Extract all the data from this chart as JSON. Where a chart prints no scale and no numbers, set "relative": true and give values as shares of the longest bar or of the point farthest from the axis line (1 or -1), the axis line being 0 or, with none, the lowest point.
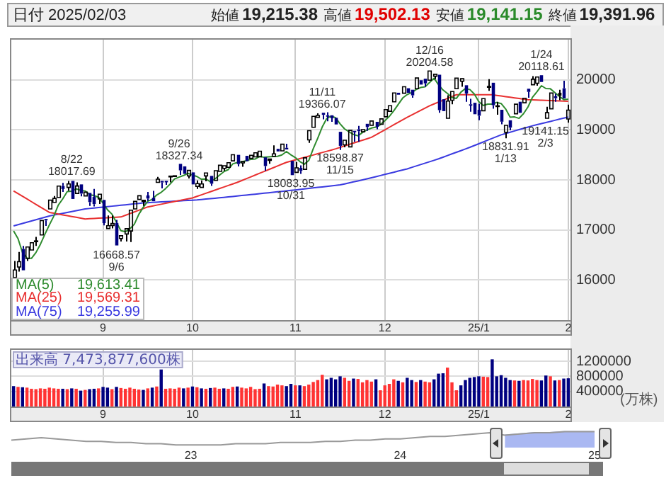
{
  "chart_data": [
    {
      "type": "candlestick",
      "title": "日付 2025/02/03",
      "annotations": [
        "始値 19,215.38",
        "高値 19,502.13",
        "安値 19,141.15",
        "終値 19,391.96",
        {
          "text": "8/22\n18017.69",
          "y": 18017.69
        },
        {
          "text": "16668.57\n9/6",
          "y": 16668.57
        },
        {
          "text": "9/26\n18327.34",
          "y": 18327.34
        },
        {
          "text": "18083.95\n10/31",
          "y": 18083.95
        },
        {
          "text": "11/11\n19366.07",
          "y": 19366.07
        },
        {
          "text": "18598.87\n11/15",
          "y": 18598.87
        },
        {
          "text": "12/16\n20204.58",
          "y": 20204.58
        },
        {
          "text": "18831.91\n1/13",
          "y": 18831.91
        },
        {
          "text": "1/24\n20118.61",
          "y": 20118.61
        },
        {
          "text": "19141.15\n2/3",
          "y": 19141.15
        }
      ],
      "categories": [
        null,
        null,
        null,
        null,
        null,
        null,
        null,
        null,
        null,
        null,
        null,
        null,
        null,
        null,
        null,
        null,
        null,
        null,
        null,
        null,
        "9",
        null,
        null,
        null,
        null,
        null,
        null,
        null,
        null,
        null,
        null,
        null,
        null,
        null,
        null,
        null,
        null,
        null,
        null,
        null,
        "10",
        null,
        null,
        null,
        null,
        null,
        null,
        null,
        null,
        null,
        null,
        null,
        null,
        null,
        null,
        null,
        null,
        null,
        null,
        null,
        null,
        null,
        null,
        "11",
        null,
        null,
        null,
        null,
        null,
        null,
        null,
        null,
        null,
        null,
        null,
        null,
        null,
        null,
        null,
        null,
        null,
        null,
        null,
        "12",
        null,
        null,
        null,
        null,
        null,
        null,
        null,
        null,
        null,
        null,
        null,
        null,
        null,
        null,
        null,
        null,
        null,
        null,
        null,
        null,
        "25/1",
        null,
        null,
        null,
        null,
        null,
        null,
        null,
        null,
        null,
        null,
        null,
        null,
        null,
        null,
        null,
        null,
        null,
        null,
        null,
        "2"
      ],
      "ohlc": [
        [
          16050,
          16380,
          16000,
          16200
        ],
        [
          16260,
          16560,
          16170,
          16366
        ],
        [
          16620,
          16680,
          16170,
          16195
        ],
        [
          16430,
          16700,
          16380,
          16660
        ],
        [
          16600,
          16780,
          16560,
          16745
        ],
        [
          16770,
          16860,
          16680,
          16781
        ],
        [
          16900,
          17190,
          16890,
          17188
        ],
        [
          17220,
          17260,
          17080,
          17192
        ],
        [
          17420,
          17600,
          17400,
          17595
        ],
        [
          17550,
          17680,
          17540,
          17631
        ],
        [
          17650,
          17880,
          17620,
          17877
        ],
        [
          17880,
          17940,
          17760,
          17817
        ],
        [
          17850,
          17980,
          17780,
          17919
        ],
        [
          17980,
          18017.69,
          17580,
          17619
        ],
        [
          17730,
          17950,
          17700,
          17878
        ],
        [
          17910,
          17920,
          17670,
          17726
        ],
        [
          17680,
          17790,
          17640,
          17755
        ],
        [
          17740,
          17770,
          17480,
          17556
        ],
        [
          17660,
          17820,
          17470,
          17517
        ],
        [
          17620,
          17730,
          17520,
          17714
        ],
        [
          17600,
          17620,
          17090,
          17136
        ],
        [
          17030,
          17290,
          17030,
          17085
        ],
        [
          17090,
          17290,
          17030,
          17128
        ],
        [
          17140,
          17200,
          16668.57,
          16691
        ],
        [
          16830,
          16920,
          16770,
          16885
        ],
        [
          16920,
          17030,
          16770,
          17026
        ],
        [
          16980,
          17400,
          16760,
          17396
        ],
        [
          17420,
          17590,
          17390,
          17570
        ],
        [
          17610,
          17710,
          17600,
          17684
        ],
        [
          17570,
          17600,
          17480,
          17593
        ],
        [
          17690,
          17760,
          17580,
          17628
        ],
        [
          17640,
          17780,
          17560,
          17574
        ],
        [
          17950,
          18060,
          17920,
          18014
        ],
        [
          17980,
          17990,
          17830,
          17948
        ],
        [
          17980,
          18000,
          17900,
          17974
        ],
        [
          18060,
          18090,
          17950,
          18075
        ],
        [
          18070,
          18120,
          18040,
          18082
        ],
        [
          18320,
          18327.34,
          18100,
          18190
        ],
        [
          18270,
          18290,
          18090,
          18120
        ],
        [
          18080,
          18200,
          18030,
          18189
        ],
        [
          18150,
          18160,
          17870,
          17910
        ],
        [
          17870,
          17990,
          17820,
          17926
        ],
        [
          17850,
          17990,
          17820,
          17918
        ],
        [
          18080,
          18150,
          17970,
          18138
        ],
        [
          18080,
          18120,
          17880,
          17924
        ],
        [
          17990,
          18190,
          17960,
          18183
        ],
        [
          18170,
          18300,
          18150,
          18291
        ],
        [
          18230,
          18300,
          18180,
          18282
        ],
        [
          18250,
          18360,
          18240,
          18343
        ],
        [
          18380,
          18520,
          18370,
          18503
        ],
        [
          18500,
          18530,
          18270,
          18316
        ],
        [
          18340,
          18380,
          18260,
          18367
        ],
        [
          18480,
          18500,
          18360,
          18374
        ],
        [
          18430,
          18520,
          18410,
          18490
        ],
        [
          18460,
          18550,
          18420,
          18540
        ],
        [
          18460,
          18600,
          18420,
          18573
        ],
        [
          18450,
          18480,
          18180,
          18277
        ],
        [
          18390,
          18440,
          18320,
          18416
        ],
        [
          18470,
          18690,
          18460,
          18519
        ],
        [
          18620,
          18640,
          18540,
          18568
        ],
        [
          18580,
          18730,
          18550,
          18713
        ],
        [
          18640,
          18720,
          18600,
          18608
        ],
        [
          18380,
          18400,
          18083.95,
          18095
        ],
        [
          18150,
          18360,
          18150,
          18240
        ],
        [
          18240,
          18290,
          18120,
          18180
        ],
        [
          18210,
          18470,
          18210,
          18440
        ],
        [
          18800,
          18990,
          18740,
          18983
        ],
        [
          19050,
          19280,
          19040,
          19270
        ],
        [
          19250,
          19330,
          19220,
          19287
        ],
        [
          19340,
          19366.07,
          19210,
          19299
        ],
        [
          19290,
          19350,
          19170,
          19282
        ],
        [
          19290,
          19330,
          19160,
          19231
        ],
        [
          19240,
          19270,
          19090,
          19107
        ],
        [
          18960,
          18970,
          18598.87,
          18680
        ],
        [
          18700,
          18820,
          18650,
          18792
        ],
        [
          18660,
          19000,
          18640,
          18988
        ],
        [
          18980,
          18990,
          18760,
          18966
        ],
        [
          19010,
          19080,
          18760,
          18973
        ],
        [
          18960,
          19040,
          18930,
          19004
        ],
        [
          19120,
          19140,
          18980,
          19055
        ],
        [
          19090,
          19180,
          19050,
          19175
        ],
        [
          19160,
          19160,
          19010,
          19060
        ],
        [
          19110,
          19250,
          19100,
          19218
        ],
        [
          19260,
          19410,
          19250,
          19404
        ],
        [
          19370,
          19490,
          19350,
          19481
        ],
        [
          19560,
          19740,
          19550,
          19735
        ],
        [
          19740,
          19780,
          19680,
          19701
        ],
        [
          19730,
          19870,
          19720,
          19860
        ],
        [
          19830,
          19860,
          19700,
          19737
        ],
        [
          19800,
          19830,
          19640,
          19688
        ],
        [
          19820,
          20060,
          19800,
          20034
        ],
        [
          19990,
          20000,
          19900,
          19903
        ],
        [
          20020,
          20060,
          19860,
          19927
        ],
        [
          19990,
          20204.58,
          19990,
          20174
        ],
        [
          20070,
          20120,
          20010,
          20109
        ],
        [
          20100,
          20130,
          19340,
          19393
        ],
        [
          19610,
          19650,
          19360,
          19373
        ],
        [
          19230,
          19690,
          19200,
          19573
        ],
        [
          19590,
          19780,
          19510,
          19765
        ],
        [
          19820,
          20040,
          19800,
          20031
        ],
        [
          19970,
          20050,
          19860,
          20020
        ],
        [
          19890,
          19900,
          19560,
          19722
        ],
        [
          19510,
          19620,
          19360,
          19487
        ],
        [
          19540,
          19540,
          19290,
          19311
        ],
        [
          19400,
          19520,
          19190,
          19281
        ],
        [
          19380,
          19650,
          19350,
          19622
        ],
        [
          19850,
          20010,
          19780,
          19865
        ],
        [
          19940,
          19940,
          19420,
          19490
        ],
        [
          19470,
          19560,
          19300,
          19479
        ],
        [
          19400,
          19410,
          19110,
          19162
        ],
        [
          18950,
          19100,
          18831.91,
          19088
        ],
        [
          19190,
          19220,
          18990,
          19044
        ],
        [
          19320,
          19540,
          19310,
          19511
        ],
        [
          19560,
          19560,
          19330,
          19339
        ],
        [
          19540,
          19670,
          19520,
          19630
        ],
        [
          19820,
          19850,
          19640,
          19757
        ],
        [
          19900,
          20070,
          19890,
          20010
        ],
        [
          19930,
          20060,
          19880,
          20054
        ],
        [
          20090,
          20118.61,
          19940,
          19955
        ],
        [
          19230,
          19460,
          19200,
          19342
        ],
        [
          19420,
          19760,
          19380,
          19734
        ],
        [
          19670,
          19720,
          19560,
          19633
        ],
        [
          19740,
          19800,
          19590,
          19681
        ],
        [
          19830,
          19980,
          19600,
          19627
        ],
        [
          19215.38,
          19502.13,
          19141.15,
          19391.96
        ]
      ],
      "series": [
        {
          "name": "MA(5) 19,613.41",
          "color": "#2e8b2e",
          "type": "line",
          "values": [
            16983,
            16827,
            16546,
            16439,
            16433,
            16549,
            16714,
            16913,
            17100,
            17277,
            17497,
            17622,
            17768,
            17773,
            17822,
            17792,
            17779,
            17707,
            17686,
            17654,
            17536,
            17402,
            17316,
            17151,
            16985,
            16963,
            17025,
            17114,
            17312,
            17454,
            17574,
            17610,
            17699,
            17751,
            17828,
            17917,
            18019,
            18054,
            18088,
            18131,
            18098,
            18067,
            18013,
            18016,
            17963,
            18018,
            18091,
            18164,
            18205,
            18320,
            18347,
            18362,
            18381,
            18410,
            18417,
            18469,
            18451,
            18459,
            18465,
            18471,
            18499,
            18565,
            18501,
            18445,
            18367,
            18313,
            18388,
            18623,
            18832,
            19056,
            19224,
            19274,
            19241,
            19120,
            19018,
            18960,
            18907,
            18880,
            18945,
            18997,
            19035,
            19053,
            19102,
            19182,
            19268,
            19380,
            19508,
            19636,
            19703,
            19744,
            19804,
            19844,
            19858,
            19945,
            20029,
            19901,
            19795,
            19724,
            19643,
            19627,
            19752,
            19822,
            19805,
            19714,
            19564,
            19485,
            19513,
            19514,
            19547,
            19524,
            19417,
            19253,
            19257,
            19229,
            19322,
            19456,
            19649,
            19758,
            19881,
            19824,
            19819,
            19744,
            19669,
            19603,
            19613.41
          ]
        },
        {
          "name": "MA(25) 19,569.31",
          "color": "#e83030",
          "type": "line",
          "values": [
            17780,
            17726,
            17673,
            17619,
            17565,
            17511,
            17458,
            17404,
            17350,
            17334,
            17318,
            17301,
            17285,
            17269,
            17253,
            17236,
            17220,
            17225,
            17230,
            17235,
            17240,
            17245,
            17250,
            17255,
            17260,
            17293,
            17327,
            17360,
            17393,
            17427,
            17460,
            17478,
            17496,
            17514,
            17532,
            17550,
            17568,
            17586,
            17604,
            17622,
            17640,
            17671,
            17702,
            17733,
            17764,
            17795,
            17826,
            17857,
            17888,
            17919,
            17950,
            17986,
            18023,
            18059,
            18095,
            18132,
            18168,
            18205,
            18241,
            18277,
            18314,
            18350,
            18375,
            18399,
            18424,
            18448,
            18473,
            18497,
            18522,
            18546,
            18571,
            18595,
            18620,
            18649,
            18678,
            18706,
            18735,
            18764,
            18793,
            18821,
            18850,
            18900,
            18950,
            19000,
            19050,
            19100,
            19150,
            19200,
            19250,
            19296,
            19342,
            19388,
            19434,
            19480,
            19517,
            19553,
            19590,
            19627,
            19663,
            19700,
            19700,
            19700,
            19700,
            19700,
            19700,
            19700,
            19700,
            19700,
            19688,
            19675,
            19663,
            19650,
            19638,
            19625,
            19613,
            19600,
            19597,
            19593,
            19590,
            19587,
            19583,
            19580,
            19576,
            19573,
            19569.31
          ]
        },
        {
          "name": "MA(75) 19,255.99",
          "color": "#3a3ae0",
          "type": "line",
          "values": [
            17080,
            17105,
            17130,
            17155,
            17180,
            17205,
            17230,
            17255,
            17280,
            17298,
            17315,
            17333,
            17350,
            17368,
            17385,
            17403,
            17420,
            17429,
            17438,
            17448,
            17457,
            17466,
            17475,
            17485,
            17494,
            17503,
            17512,
            17522,
            17531,
            17540,
            17545,
            17550,
            17555,
            17560,
            17565,
            17570,
            17575,
            17580,
            17585,
            17590,
            17595,
            17600,
            17609,
            17617,
            17626,
            17634,
            17643,
            17651,
            17660,
            17669,
            17678,
            17688,
            17697,
            17706,
            17715,
            17725,
            17734,
            17743,
            17752,
            17762,
            17771,
            17780,
            17790,
            17800,
            17810,
            17820,
            17830,
            17840,
            17850,
            17860,
            17870,
            17880,
            17890,
            17900,
            17920,
            17940,
            17960,
            17980,
            18000,
            18020,
            18042,
            18064,
            18087,
            18109,
            18131,
            18153,
            18176,
            18198,
            18220,
            18249,
            18277,
            18306,
            18334,
            18363,
            18391,
            18420,
            18453,
            18486,
            18519,
            18551,
            18584,
            18617,
            18650,
            18686,
            18721,
            18757,
            18793,
            18829,
            18864,
            18900,
            18926,
            18951,
            18977,
            19003,
            19029,
            19054,
            19080,
            19102,
            19124,
            19146,
            19168,
            19190,
            19212,
            19234,
            19255.99
          ]
        }
      ],
      "colors": [
        "#000000",
        "#000000",
        "#000080",
        "#000000",
        "#000000",
        "#000000",
        "#000000",
        "#000080",
        "#000000",
        "#000000",
        "#000000",
        "#000080",
        "#000000",
        "#000080",
        "#000000",
        "#000080",
        "#000000",
        "#000080",
        "#000080",
        "#000000",
        "#000080",
        "#000000",
        "#000000",
        "#000080",
        "#000000",
        "#000000",
        "#000000",
        "#000000",
        "#000000",
        "#000000",
        "#000080",
        "#000080",
        "#000000",
        "#000080",
        "#000080",
        "#000000",
        "#000000",
        "#000080",
        "#000080",
        "#000000",
        "#000080",
        "#000000",
        "#000000",
        "#000000",
        "#000080",
        "#000000",
        "#000000",
        "#000000",
        "#000000",
        "#000000",
        "#000080",
        "#000000",
        "#000080",
        "#000000",
        "#000000",
        "#000000",
        "#000080",
        "#000000",
        "#000000",
        "#000080",
        "#000000",
        "#000080",
        "#000080",
        "#000000",
        "#000080",
        "#000000",
        "#000000",
        "#000000",
        "#000000",
        "#000080",
        "#000080",
        "#000080",
        "#000080",
        "#000080",
        "#000000",
        "#000000",
        "#000080",
        "#000080",
        "#000000",
        "#000080",
        "#000000",
        "#000080",
        "#000000",
        "#000000",
        "#000000",
        "#000000",
        "#000080",
        "#000000",
        "#000080",
        "#000080",
        "#000000",
        "#000080",
        "#000080",
        "#000000",
        "#000000",
        "#000080",
        "#000080",
        "#000000",
        "#000000",
        "#000000",
        "#000000",
        "#000080",
        "#000080",
        "#000080",
        "#000080",
        "#000000",
        "#000000",
        "#000080",
        "#000000",
        "#000080",
        "#000000",
        "#000080",
        "#000000",
        "#000080",
        "#000000",
        "#000080",
        "#000000",
        "#000000",
        "#000080",
        "#000000",
        "#000000",
        "#000080",
        "#000000",
        "#000080",
        "#000000"
      ],
      "ylim": [
        15200,
        20800
      ],
      "yticks": [
        16000,
        17000,
        18000,
        19000,
        20000
      ],
      "grid": true,
      "legend": "bottom left"
    },
    {
      "type": "bar",
      "title": "出来高 7,473,877,600株",
      "ylabel": "(万株)",
      "categories": [
        null,
        null,
        null,
        null,
        null,
        null,
        null,
        null,
        null,
        null,
        null,
        null,
        null,
        null,
        null,
        null,
        null,
        null,
        null,
        null,
        "9",
        null,
        null,
        null,
        null,
        null,
        null,
        null,
        null,
        null,
        null,
        null,
        null,
        null,
        null,
        null,
        null,
        null,
        null,
        null,
        "10",
        null,
        null,
        null,
        null,
        null,
        null,
        null,
        null,
        null,
        null,
        null,
        null,
        null,
        null,
        null,
        null,
        null,
        null,
        null,
        null,
        null,
        null,
        "11",
        null,
        null,
        null,
        null,
        null,
        null,
        null,
        null,
        null,
        null,
        null,
        null,
        null,
        null,
        null,
        null,
        null,
        null,
        null,
        "12",
        null,
        null,
        null,
        null,
        null,
        null,
        null,
        null,
        null,
        null,
        null,
        null,
        null,
        null,
        null,
        null,
        null,
        null,
        null,
        null,
        "25/1",
        null,
        null,
        null,
        null,
        null,
        null,
        null,
        null,
        null,
        null,
        null,
        null,
        null,
        null,
        null,
        null,
        null,
        null,
        null,
        "2"
      ],
      "values": [
        540000,
        520000,
        510000,
        500000,
        470000,
        460000,
        480000,
        470000,
        500000,
        480000,
        470000,
        470000,
        460000,
        480000,
        470000,
        420000,
        440000,
        460000,
        470000,
        480000,
        520000,
        500000,
        460000,
        520000,
        490000,
        470000,
        500000,
        470000,
        450000,
        440000,
        480000,
        500000,
        530000,
        980000,
        470000,
        480000,
        470000,
        500000,
        480000,
        500000,
        530000,
        510000,
        480000,
        470000,
        490000,
        500000,
        470000,
        480000,
        470000,
        520000,
        530000,
        500000,
        480000,
        520000,
        460000,
        470000,
        610000,
        540000,
        530000,
        580000,
        560000,
        540000,
        600000,
        560000,
        560000,
        540000,
        580000,
        650000,
        700000,
        840000,
        720000,
        760000,
        720000,
        800000,
        760000,
        680000,
        740000,
        730000,
        640000,
        700000,
        660000,
        720000,
        430000,
        560000,
        600000,
        720000,
        680000,
        640000,
        760000,
        700000,
        650000,
        700000,
        660000,
        640000,
        720000,
        870000,
        880000,
        1030000,
        640000,
        430000,
        560000,
        700000,
        760000,
        780000,
        800000,
        790000,
        780000,
        1250000,
        800000,
        830000,
        760000,
        700000,
        690000,
        680000,
        700000,
        690000,
        730000,
        700000,
        690000,
        820000,
        800000,
        690000,
        700000,
        740000,
        747387.76
      ],
      "colors": [
        "#000080",
        "#ff3333",
        "#000080",
        "#ff3333",
        "#ff3333",
        "#ff3333",
        "#ff3333",
        "#ff3333",
        "#ff3333",
        "#ff3333",
        "#ff3333",
        "#000080",
        "#ff3333",
        "#000080",
        "#ff3333",
        "#000080",
        "#ff3333",
        "#000080",
        "#000080",
        "#ff3333",
        "#000080",
        "#000080",
        "#ff3333",
        "#000080",
        "#ff3333",
        "#ff3333",
        "#ff3333",
        "#ff3333",
        "#ff3333",
        "#000080",
        "#ff3333",
        "#000080",
        "#ff3333",
        "#000080",
        "#ff3333",
        "#ff3333",
        "#ff3333",
        "#ff3333",
        "#000080",
        "#ff3333",
        "#000080",
        "#ff3333",
        "#000080",
        "#ff3333",
        "#000080",
        "#ff3333",
        "#ff3333",
        "#000080",
        "#ff3333",
        "#ff3333",
        "#000080",
        "#ff3333",
        "#ff3333",
        "#ff3333",
        "#ff3333",
        "#ff3333",
        "#000080",
        "#ff3333",
        "#ff3333",
        "#ff3333",
        "#ff3333",
        "#000080",
        "#000080",
        "#ff3333",
        "#000080",
        "#ff3333",
        "#ff3333",
        "#ff3333",
        "#ff3333",
        "#ff3333",
        "#000080",
        "#000080",
        "#000080",
        "#000080",
        "#ff3333",
        "#ff3333",
        "#000080",
        "#ff3333",
        "#ff3333",
        "#ff3333",
        "#ff3333",
        "#000080",
        "#ff3333",
        "#ff3333",
        "#ff3333",
        "#ff3333",
        "#000080",
        "#ff3333",
        "#000080",
        "#000080",
        "#ff3333",
        "#000080",
        "#ff3333",
        "#ff3333",
        "#000080",
        "#000080",
        "#000080",
        "#ff3333",
        "#ff3333",
        "#ff3333",
        "#000080",
        "#000080",
        "#000080",
        "#000080",
        "#000080",
        "#ff3333",
        "#ff3333",
        "#000080",
        "#000080",
        "#000080",
        "#000080",
        "#000080",
        "#ff3333",
        "#000080",
        "#ff3333",
        "#ff3333",
        "#ff3333",
        "#ff3333",
        "#000080",
        "#000080",
        "#ff3333",
        "#000080",
        "#ff3333",
        "#000080",
        "#000080"
      ],
      "ylim": [
        0,
        1500000
      ],
      "yticks": [
        400000,
        800000,
        1200000
      ],
      "grid": true
    },
    {
      "type": "line",
      "relative": true,
      "categories": [
        null,
        null,
        null,
        null,
        null,
        null,
        null,
        null,
        null,
        null,
        null,
        null,
        "23",
        null,
        null,
        null,
        null,
        null,
        null,
        null,
        null,
        null,
        null,
        null,
        null,
        null,
        "24",
        null,
        null,
        null,
        null,
        null,
        null,
        null,
        null,
        null,
        null,
        null,
        null,
        "25"
      ],
      "series": [
        {
          "color": "#999999",
          "values": [
            0.36,
            0.45,
            0.55,
            0.45,
            0.36,
            0.27,
            0.27,
            0.18,
            0.18,
            0.09,
            0.09,
            0,
            0,
            0,
            0,
            0.09,
            0.09,
            0.09,
            0.18,
            0.18,
            0.18,
            0.27,
            0.27,
            0.36,
            0.36,
            0.45,
            0.45,
            0.55,
            0.64,
            0.64,
            0.73,
            0.82,
            0.91,
            0.73,
            0.82,
            0.91,
            0.91,
            1,
            1,
            1
          ]
        },
        {
          "type": "area",
          "color": "#aab8f2",
          "values": [
            null,
            null,
            null,
            null,
            null,
            null,
            null,
            null,
            null,
            null,
            null,
            null,
            null,
            null,
            null,
            null,
            null,
            null,
            null,
            null,
            null,
            null,
            null,
            null,
            null,
            null,
            null,
            null,
            null,
            null,
            null,
            null,
            null,
            0.73,
            0.82,
            0.91,
            0.91,
            1,
            1,
            1
          ]
        }
      ]
    }
  ]
}
